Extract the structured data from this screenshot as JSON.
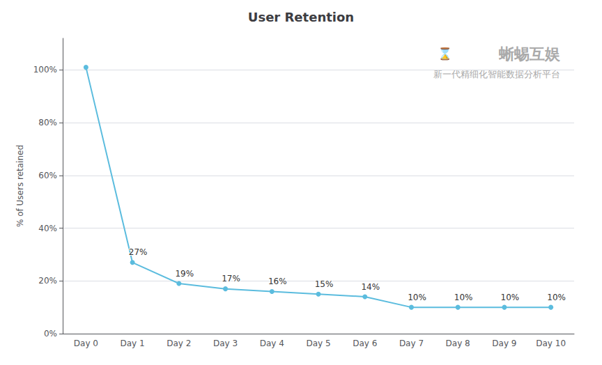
{
  "chart_data": {
    "type": "line",
    "title": "User Retention",
    "ylabel": "% of Users retained",
    "categories": [
      "Day 0",
      "Day 1",
      "Day 2",
      "Day 3",
      "Day 4",
      "Day 5",
      "Day 6",
      "Day 7",
      "Day 8",
      "Day 9",
      "Day 10"
    ],
    "values": [
      1.01,
      0.27,
      0.19,
      0.17,
      0.16,
      0.15,
      0.14,
      0.1,
      0.1,
      0.1,
      0.1
    ],
    "value_labels": [
      null,
      "27%",
      "19%",
      "17%",
      "16%",
      "15%",
      "14%",
      "10%",
      "10%",
      "10%",
      "10%"
    ],
    "data_labels": true,
    "color": "#5bbcde",
    "marker": "circle",
    "ylim": [
      0,
      1.12
    ],
    "yticks": [
      {
        "value": 0.0,
        "label": "0%"
      },
      {
        "value": 0.2,
        "label": "20%"
      },
      {
        "value": 0.4,
        "label": "40%"
      },
      {
        "value": 0.6,
        "label": "60%"
      },
      {
        "value": 0.8,
        "label": "80%"
      },
      {
        "value": 1.0,
        "label": "100%"
      }
    ],
    "grid": true,
    "annotations": [
      "⌛",
      "蜥蜴互娱",
      "新一代精细化智能数据分析平台"
    ]
  }
}
